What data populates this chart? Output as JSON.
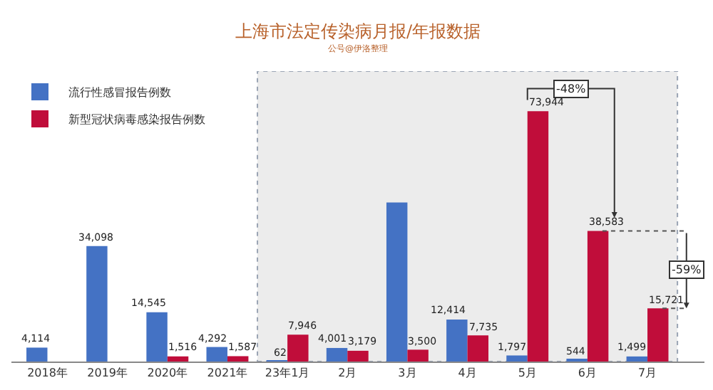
{
  "chart_data": {
    "type": "bar",
    "title": "上海市法定传染病月报/年报数据",
    "subtitle": "公号@伊洛整理",
    "categories": [
      "2018年",
      "2019年",
      "2020年",
      "2021年",
      "23年1月",
      "2月",
      "3月",
      "4月",
      "5月",
      "6月",
      "7月"
    ],
    "series": [
      {
        "name": "流行性感冒报告例数",
        "color": "#4472c4",
        "values": [
          4114,
          34098,
          14545,
          4292,
          62,
          4001,
          47000,
          12414,
          1797,
          544,
          1499
        ],
        "value_labels": [
          "4,114",
          "34,098",
          "14,545",
          "4,292",
          "62",
          "4,001",
          null,
          "12,414",
          "1,797",
          "544",
          "1,499"
        ]
      },
      {
        "name": "新型冠状病毒感染报告例数",
        "color": "#c00d3a",
        "values": [
          null,
          null,
          1516,
          1587,
          7946,
          3179,
          3500,
          7735,
          73944,
          38583,
          15721
        ],
        "value_labels": [
          null,
          null,
          "1,516",
          "1,587",
          "7,946",
          "3,179",
          "3,500",
          "7,735",
          "73,944",
          "38,583",
          "15,721"
        ]
      }
    ],
    "annotations": [
      "-48%",
      "-59%"
    ],
    "bands": [
      {
        "axis": "x",
        "from": "23年1月",
        "to": "7月",
        "color": "#ececec"
      }
    ],
    "legend": "top left",
    "grid": false
  }
}
